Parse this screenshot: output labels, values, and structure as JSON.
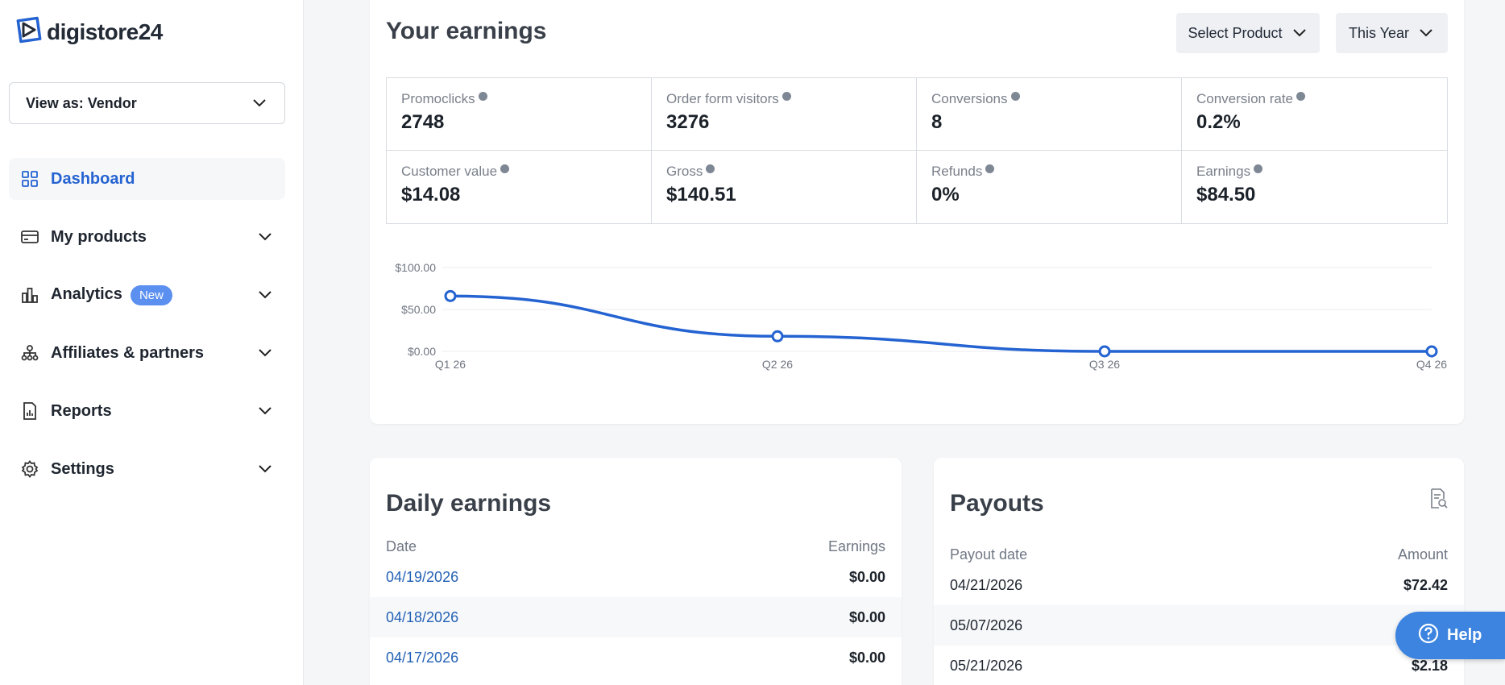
{
  "brand": {
    "name": "digistore24",
    "accent": "#2463d1"
  },
  "view_as": {
    "label": "View as: Vendor"
  },
  "nav": [
    {
      "label": "Dashboard",
      "icon": "grid-icon",
      "active": true
    },
    {
      "label": "My products",
      "icon": "card-icon"
    },
    {
      "label": "Analytics",
      "icon": "bar-chart-icon",
      "badge": "New"
    },
    {
      "label": "Affiliates & partners",
      "icon": "network-icon"
    },
    {
      "label": "Reports",
      "icon": "report-icon"
    },
    {
      "label": "Settings",
      "icon": "gear-icon"
    }
  ],
  "earnings": {
    "title": "Your earnings",
    "product_filter": "Select Product",
    "period_filter": "This Year",
    "stats": [
      {
        "label": "Promoclicks",
        "value": "2748"
      },
      {
        "label": "Order form visitors",
        "value": "3276"
      },
      {
        "label": "Conversions",
        "value": "8"
      },
      {
        "label": "Conversion rate",
        "value": "0.2%"
      },
      {
        "label": "Customer value",
        "value": "$14.08"
      },
      {
        "label": "Gross",
        "value": "$140.51"
      },
      {
        "label": "Refunds",
        "value": "0%"
      },
      {
        "label": "Earnings",
        "value": "$84.50"
      }
    ]
  },
  "chart_data": {
    "type": "line",
    "categories": [
      "Q1 26",
      "Q2 26",
      "Q3 26",
      "Q4 26"
    ],
    "series": [
      {
        "values": [
          66,
          18,
          0,
          0
        ]
      }
    ],
    "yticks": [
      "$0.00",
      "$50.00",
      "$100.00"
    ],
    "ylim": [
      0,
      100
    ],
    "grid": true,
    "color": "#2463d1"
  },
  "daily": {
    "title": "Daily earnings",
    "col_date": "Date",
    "col_amount": "Earnings",
    "rows": [
      {
        "date": "04/19/2026",
        "amount": "$0.00"
      },
      {
        "date": "04/18/2026",
        "amount": "$0.00"
      },
      {
        "date": "04/17/2026",
        "amount": "$0.00"
      }
    ]
  },
  "payouts": {
    "title": "Payouts",
    "col_date": "Payout date",
    "col_amount": "Amount",
    "rows": [
      {
        "date": "04/21/2026",
        "amount": "$72.42"
      },
      {
        "date": "05/07/2026",
        "amount": ""
      },
      {
        "date": "05/21/2026",
        "amount": "$2.18"
      }
    ]
  },
  "help": {
    "label": "Help"
  }
}
